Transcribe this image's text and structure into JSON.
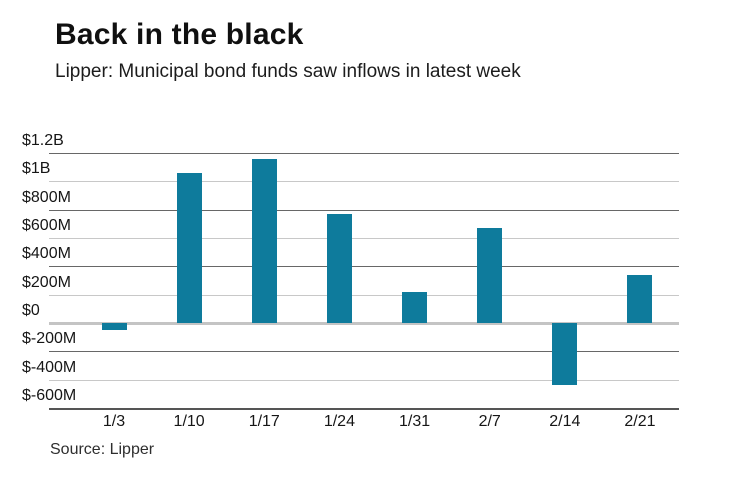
{
  "colors": {
    "bar": "#0e7b9c",
    "grid_dark": "#676767",
    "grid_light": "#c8c8c8",
    "zero_line": "#c4c4c4",
    "axis_bottom": "#555555"
  },
  "chart_data": {
    "type": "bar",
    "title": "Back in the black",
    "subtitle": "Lipper: Municipal bond funds saw inflows in latest week",
    "source": "Source: Lipper",
    "categories": [
      "1/3",
      "1/10",
      "1/17",
      "1/24",
      "1/31",
      "2/7",
      "2/14",
      "2/21"
    ],
    "values_millions": [
      -50,
      1060,
      1160,
      770,
      220,
      670,
      -440,
      340
    ],
    "ylim": [
      -600,
      1200
    ],
    "ytick_step_millions": 200,
    "y_ticks": [
      {
        "label": "$1.2B",
        "value": 1200
      },
      {
        "label": "$1B",
        "value": 1000
      },
      {
        "label": "$800M",
        "value": 800
      },
      {
        "label": "$600M",
        "value": 600
      },
      {
        "label": "$400M",
        "value": 400
      },
      {
        "label": "$200M",
        "value": 200
      },
      {
        "label": "$0",
        "value": 0
      },
      {
        "label": "$-200M",
        "value": -200
      },
      {
        "label": "$-400M",
        "value": -400
      },
      {
        "label": "$-600M",
        "value": -600
      }
    ],
    "grid": "horizontal",
    "legend": "none"
  }
}
